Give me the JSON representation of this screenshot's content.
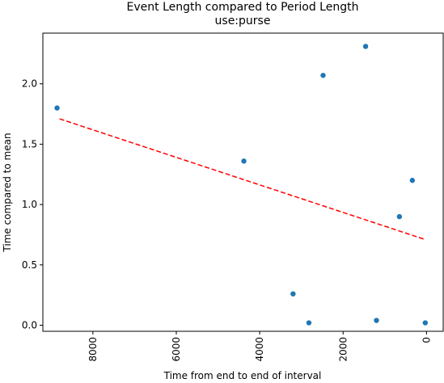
{
  "chart_data": {
    "type": "scatter",
    "title": "Event Length compared to Period Length",
    "subtitle": "use:purse",
    "xlabel": "Time from end to end of interval",
    "ylabel": "Time compared to mean",
    "x_inverted": true,
    "xlim": [
      9200,
      -400
    ],
    "ylim": [
      -0.05,
      2.42
    ],
    "x_ticks": [
      8000,
      6000,
      4000,
      2000,
      0
    ],
    "x_tick_labels": [
      "8000",
      "6000",
      "4000",
      "2000",
      "0"
    ],
    "x_tick_rotation": 90,
    "y_ticks": [
      0.0,
      0.5,
      1.0,
      1.5,
      2.0
    ],
    "y_tick_labels": [
      "0.0",
      "0.5",
      "1.0",
      "1.5",
      "2.0"
    ],
    "grid": false,
    "points": [
      {
        "x": 8860,
        "y": 1.8
      },
      {
        "x": 4380,
        "y": 1.36
      },
      {
        "x": 3200,
        "y": 0.26
      },
      {
        "x": 2820,
        "y": 0.02
      },
      {
        "x": 2480,
        "y": 2.07
      },
      {
        "x": 1460,
        "y": 2.31
      },
      {
        "x": 1200,
        "y": 0.04
      },
      {
        "x": 650,
        "y": 0.9
      },
      {
        "x": 340,
        "y": 1.2
      },
      {
        "x": 30,
        "y": 0.02
      }
    ],
    "trendline": {
      "x": [
        8800,
        30
      ],
      "y": [
        1.71,
        0.71
      ]
    },
    "colors": {
      "points": "#1f77b4",
      "trendline": "#ff0000",
      "axes": "#000000"
    }
  }
}
